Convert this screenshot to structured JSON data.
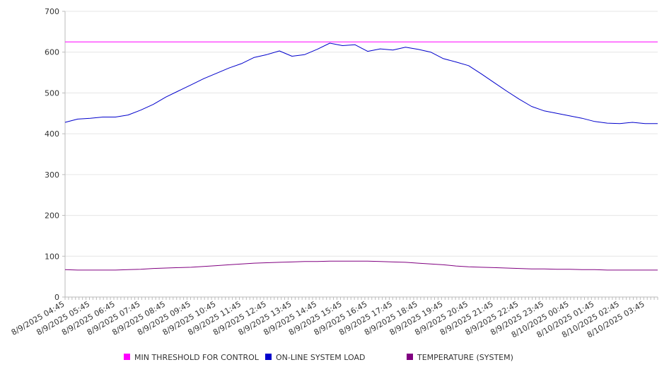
{
  "chart_data": {
    "type": "line",
    "title": "",
    "xlabel": "",
    "ylabel": "",
    "ylim": [
      0,
      700
    ],
    "y_ticks": [
      0,
      100,
      200,
      300,
      400,
      500,
      600,
      700
    ],
    "grid": true,
    "legend_position": "bottom",
    "x_tick_labels": [
      "8/9/2025 04:45",
      "8/9/2025 05:45",
      "8/9/2025 06:45",
      "8/9/2025 07:45",
      "8/9/2025 08:45",
      "8/9/2025 09:45",
      "8/9/2025 10:45",
      "8/9/2025 11:45",
      "8/9/2025 12:45",
      "8/9/2025 13:45",
      "8/9/2025 14:45",
      "8/9/2025 15:45",
      "8/9/2025 16:45",
      "8/9/2025 17:45",
      "8/9/2025 18:45",
      "8/9/2025 19:45",
      "8/9/2025 20:45",
      "8/9/2025 21:45",
      "8/9/2025 22:45",
      "8/9/2025 23:45",
      "8/10/2025 00:45",
      "8/10/2025 01:45",
      "8/10/2025 02:45",
      "8/10/2025 03:45"
    ],
    "x": [
      "8/9/2025 04:45",
      "8/9/2025 05:15",
      "8/9/2025 05:45",
      "8/9/2025 06:15",
      "8/9/2025 06:45",
      "8/9/2025 07:15",
      "8/9/2025 07:45",
      "8/9/2025 08:15",
      "8/9/2025 08:45",
      "8/9/2025 09:15",
      "8/9/2025 09:45",
      "8/9/2025 10:15",
      "8/9/2025 10:45",
      "8/9/2025 11:15",
      "8/9/2025 11:45",
      "8/9/2025 12:15",
      "8/9/2025 12:45",
      "8/9/2025 13:15",
      "8/9/2025 13:45",
      "8/9/2025 14:15",
      "8/9/2025 14:45",
      "8/9/2025 15:15",
      "8/9/2025 15:45",
      "8/9/2025 16:15",
      "8/9/2025 16:45",
      "8/9/2025 17:15",
      "8/9/2025 17:45",
      "8/9/2025 18:15",
      "8/9/2025 18:45",
      "8/9/2025 19:15",
      "8/9/2025 19:45",
      "8/9/2025 20:15",
      "8/9/2025 20:45",
      "8/9/2025 21:15",
      "8/9/2025 21:45",
      "8/9/2025 22:15",
      "8/9/2025 22:45",
      "8/9/2025 23:15",
      "8/9/2025 23:45",
      "8/10/2025 00:15",
      "8/10/2025 00:45",
      "8/10/2025 01:15",
      "8/10/2025 01:45",
      "8/10/2025 02:15",
      "8/10/2025 02:45",
      "8/10/2025 03:15",
      "8/10/2025 03:45",
      "8/10/2025 04:15"
    ],
    "series": [
      {
        "name": "MIN THRESHOLD FOR CONTROL",
        "color": "#ff00ff",
        "values": [
          625,
          625,
          625,
          625,
          625,
          625,
          625,
          625,
          625,
          625,
          625,
          625,
          625,
          625,
          625,
          625,
          625,
          625,
          625,
          625,
          625,
          625,
          625,
          625,
          625,
          625,
          625,
          625,
          625,
          625,
          625,
          625,
          625,
          625,
          625,
          625,
          625,
          625,
          625,
          625,
          625,
          625,
          625,
          625,
          625,
          625,
          625,
          625
        ]
      },
      {
        "name": "ON-LINE SYSTEM LOAD",
        "color": "#0000cc",
        "values": [
          428,
          436,
          438,
          441,
          441,
          446,
          458,
          472,
          490,
          505,
          520,
          535,
          548,
          561,
          572,
          587,
          594,
          603,
          590,
          594,
          607,
          622,
          616,
          618,
          602,
          608,
          605,
          612,
          607,
          600,
          584,
          576,
          567,
          547,
          526,
          505,
          485,
          467,
          456,
          450,
          444,
          438,
          430,
          426,
          425,
          428,
          425,
          425
        ]
      },
      {
        "name": "TEMPERATURE (SYSTEM)",
        "color": "#800080",
        "values": [
          67,
          66,
          66,
          66,
          66,
          67,
          68,
          70,
          71,
          72,
          73,
          75,
          77,
          79,
          81,
          83,
          84,
          85,
          86,
          87,
          87,
          88,
          88,
          88,
          88,
          87,
          86,
          85,
          83,
          81,
          79,
          76,
          74,
          73,
          72,
          71,
          70,
          69,
          69,
          68,
          68,
          67,
          67,
          66,
          66,
          66,
          66,
          66
        ]
      }
    ]
  }
}
